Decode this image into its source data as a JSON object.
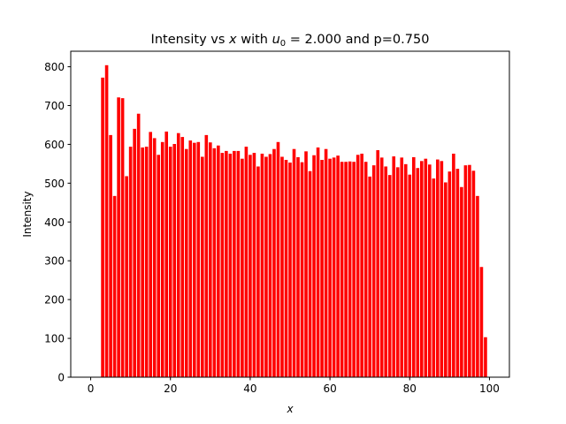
{
  "chart_data": {
    "type": "bar",
    "title": {
      "prefix": "Intensity vs ",
      "x_symbol": "x",
      "middle": " with ",
      "u_symbol": "u",
      "u_subscript": "0",
      "u_value": " = 2.000",
      "suffix": " and p=0.750"
    },
    "xlabel": "x",
    "ylabel": "Intensity",
    "xlim": [
      -5,
      105
    ],
    "ylim": [
      0,
      840
    ],
    "xticks": [
      0,
      20,
      40,
      60,
      80,
      100
    ],
    "yticks": [
      0,
      100,
      200,
      300,
      400,
      500,
      600,
      700,
      800
    ],
    "bar_width": 0.8,
    "bar_color": "#ff0000",
    "grid": false,
    "x": [
      3,
      4,
      5,
      6,
      7,
      8,
      9,
      10,
      11,
      12,
      13,
      14,
      15,
      16,
      17,
      18,
      19,
      20,
      21,
      22,
      23,
      24,
      25,
      26,
      27,
      28,
      29,
      30,
      31,
      32,
      33,
      34,
      35,
      36,
      37,
      38,
      39,
      40,
      41,
      42,
      43,
      44,
      45,
      46,
      47,
      48,
      49,
      50,
      51,
      52,
      53,
      54,
      55,
      56,
      57,
      58,
      59,
      60,
      61,
      62,
      63,
      64,
      65,
      66,
      67,
      68,
      69,
      70,
      71,
      72,
      73,
      74,
      75,
      76,
      77,
      78,
      79,
      80,
      81,
      82,
      83,
      84,
      85,
      86,
      87,
      88,
      89,
      90,
      91,
      92,
      93,
      94,
      95,
      96,
      97,
      98,
      99
    ],
    "values": [
      772,
      804,
      624,
      467,
      721,
      719,
      518,
      594,
      640,
      679,
      592,
      594,
      632,
      616,
      573,
      606,
      633,
      594,
      601,
      629,
      619,
      588,
      610,
      604,
      606,
      568,
      624,
      605,
      590,
      597,
      578,
      583,
      576,
      583,
      583,
      563,
      594,
      573,
      578,
      543,
      576,
      568,
      575,
      588,
      606,
      568,
      560,
      553,
      588,
      567,
      554,
      582,
      531,
      572,
      592,
      560,
      588,
      563,
      566,
      571,
      555,
      555,
      556,
      555,
      573,
      576,
      555,
      517,
      546,
      585,
      566,
      543,
      521,
      569,
      541,
      566,
      549,
      522,
      567,
      539,
      557,
      563,
      548,
      512,
      561,
      557,
      502,
      530,
      576,
      537,
      490,
      546,
      547,
      532,
      467,
      284,
      103
    ]
  }
}
